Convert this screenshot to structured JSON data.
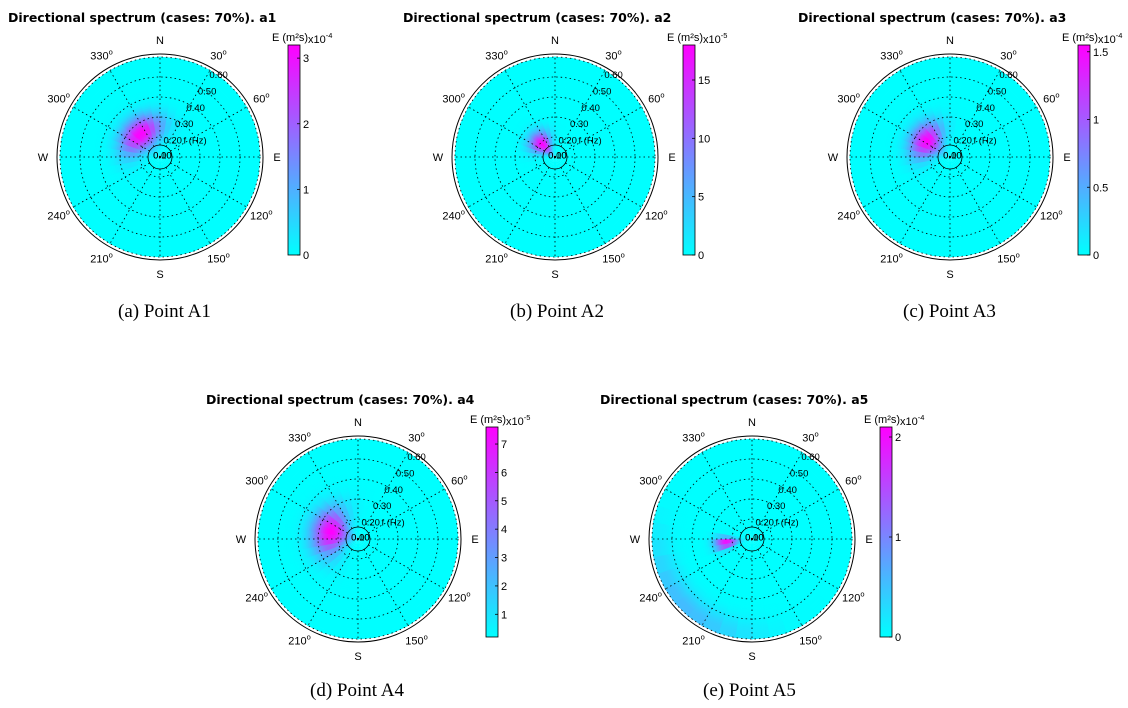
{
  "figure": {
    "captions": [
      "(a)  Point A1",
      "(b)  Point A2",
      "(c)  Point A3",
      "(d)  Point A4",
      "(e)  Point A5"
    ]
  },
  "chart_data": [
    {
      "type": "heatmap",
      "title": "Directional spectrum (cases: 70%).  a1",
      "caption": "(a)  Point A1",
      "direction_labels": [
        "N",
        "30o",
        "60o",
        "E",
        "120o",
        "150o",
        "S",
        "210o",
        "240o",
        "W",
        "300o",
        "330o"
      ],
      "radial_labels": [
        "0.00",
        "0.10",
        "0.20",
        "0.30",
        "0.40",
        "0.50",
        "0.60"
      ],
      "radial_unit": "f (Hz)",
      "colorbar": {
        "label": "E (m²s)",
        "exponent": "x10-4",
        "ticks": [
          "0",
          "1",
          "2",
          "3"
        ],
        "range": [
          0,
          3.2
        ]
      },
      "colors": {
        "low": "#00ffff",
        "high": "#ff00ff"
      },
      "peaks": [
        {
          "direction_deg": 320,
          "frequency_hz": 0.25,
          "value": 3.2,
          "dir_spread_deg": 30,
          "freq_spread_hz": 0.055
        }
      ]
    },
    {
      "type": "heatmap",
      "title": "Directional spectrum (cases: 70%).  a2",
      "caption": "(b)  Point A2",
      "direction_labels": [
        "N",
        "30o",
        "60o",
        "E",
        "120o",
        "150o",
        "S",
        "210o",
        "240o",
        "W",
        "300o",
        "330o"
      ],
      "radial_labels": [
        "0.00",
        "0.10",
        "0.20",
        "0.30",
        "0.40",
        "0.50",
        "0.60"
      ],
      "radial_unit": "f (Hz)",
      "colorbar": {
        "label": "E (m²s)",
        "exponent": "x10-5",
        "ticks": [
          "0",
          "5",
          "10",
          "15"
        ],
        "range": [
          0,
          18
        ]
      },
      "colors": {
        "low": "#00ffff",
        "high": "#ff00ff"
      },
      "peaks": [
        {
          "direction_deg": 315,
          "frequency_hz": 0.19,
          "value": 18,
          "dir_spread_deg": 20,
          "freq_spread_hz": 0.045
        }
      ]
    },
    {
      "type": "heatmap",
      "title": "Directional spectrum (cases: 70%).  a3",
      "caption": "(c)  Point A3",
      "direction_labels": [
        "N",
        "30o",
        "60o",
        "E",
        "120o",
        "150o",
        "S",
        "210o",
        "240o",
        "W",
        "300o",
        "330o"
      ],
      "radial_labels": [
        "0.00",
        "0.10",
        "0.20",
        "0.30",
        "0.40",
        "0.50",
        "0.60"
      ],
      "radial_unit": "f (Hz)",
      "colorbar": {
        "label": "E (m²s)",
        "exponent": "x10-4",
        "ticks": [
          "0",
          "0.5",
          "1",
          "1.5"
        ],
        "range": [
          0,
          1.55
        ]
      },
      "colors": {
        "low": "#00ffff",
        "high": "#ff00ff"
      },
      "peaks": [
        {
          "direction_deg": 305,
          "frequency_hz": 0.24,
          "value": 1.55,
          "dir_spread_deg": 25,
          "freq_spread_hz": 0.055
        }
      ]
    },
    {
      "type": "heatmap",
      "title": "Directional spectrum (cases: 70%).  a4",
      "caption": "(d)  Point A4",
      "direction_labels": [
        "N",
        "30o",
        "60o",
        "E",
        "120o",
        "150o",
        "S",
        "210o",
        "240o",
        "W",
        "300o",
        "330o"
      ],
      "radial_labels": [
        "0.00",
        "0.10",
        "0.20",
        "0.30",
        "0.40",
        "0.50",
        "0.60"
      ],
      "radial_unit": "f (Hz)",
      "colorbar": {
        "label": "E (m²s)",
        "exponent": "x10-5",
        "ticks": [
          "1",
          "2",
          "3",
          "4",
          "5",
          "6",
          "7"
        ],
        "range": [
          0.2,
          7.6
        ]
      },
      "colors": {
        "low": "#00ffff",
        "high": "#ff00ff"
      },
      "peaks": [
        {
          "direction_deg": 285,
          "frequency_hz": 0.24,
          "value": 7.6,
          "dir_spread_deg": 30,
          "freq_spread_hz": 0.065
        }
      ]
    },
    {
      "type": "heatmap",
      "title": "Directional spectrum (cases: 70%).  a5",
      "caption": "(e)  Point A5",
      "direction_labels": [
        "N",
        "30o",
        "60o",
        "E",
        "120o",
        "150o",
        "S",
        "210o",
        "240o",
        "W",
        "300o",
        "330o"
      ],
      "radial_labels": [
        "0.00",
        "0.10",
        "0.20",
        "0.30",
        "0.40",
        "0.50",
        "0.60"
      ],
      "radial_unit": "f (Hz)",
      "colorbar": {
        "label": "E (m²s)",
        "exponent": "x10-4",
        "ticks": [
          "0",
          "1",
          "2"
        ],
        "range": [
          0,
          2.1
        ]
      },
      "colors": {
        "low": "#00ffff",
        "high": "#ff00ff"
      },
      "peaks": [
        {
          "direction_deg": 262,
          "frequency_hz": 0.23,
          "value": 2.1,
          "dir_spread_deg": 8,
          "freq_spread_hz": 0.04
        },
        {
          "direction_deg": 225,
          "frequency_hz": 0.58,
          "value": 0.55,
          "dir_spread_deg": 30,
          "freq_spread_hz": 0.06
        }
      ]
    }
  ]
}
